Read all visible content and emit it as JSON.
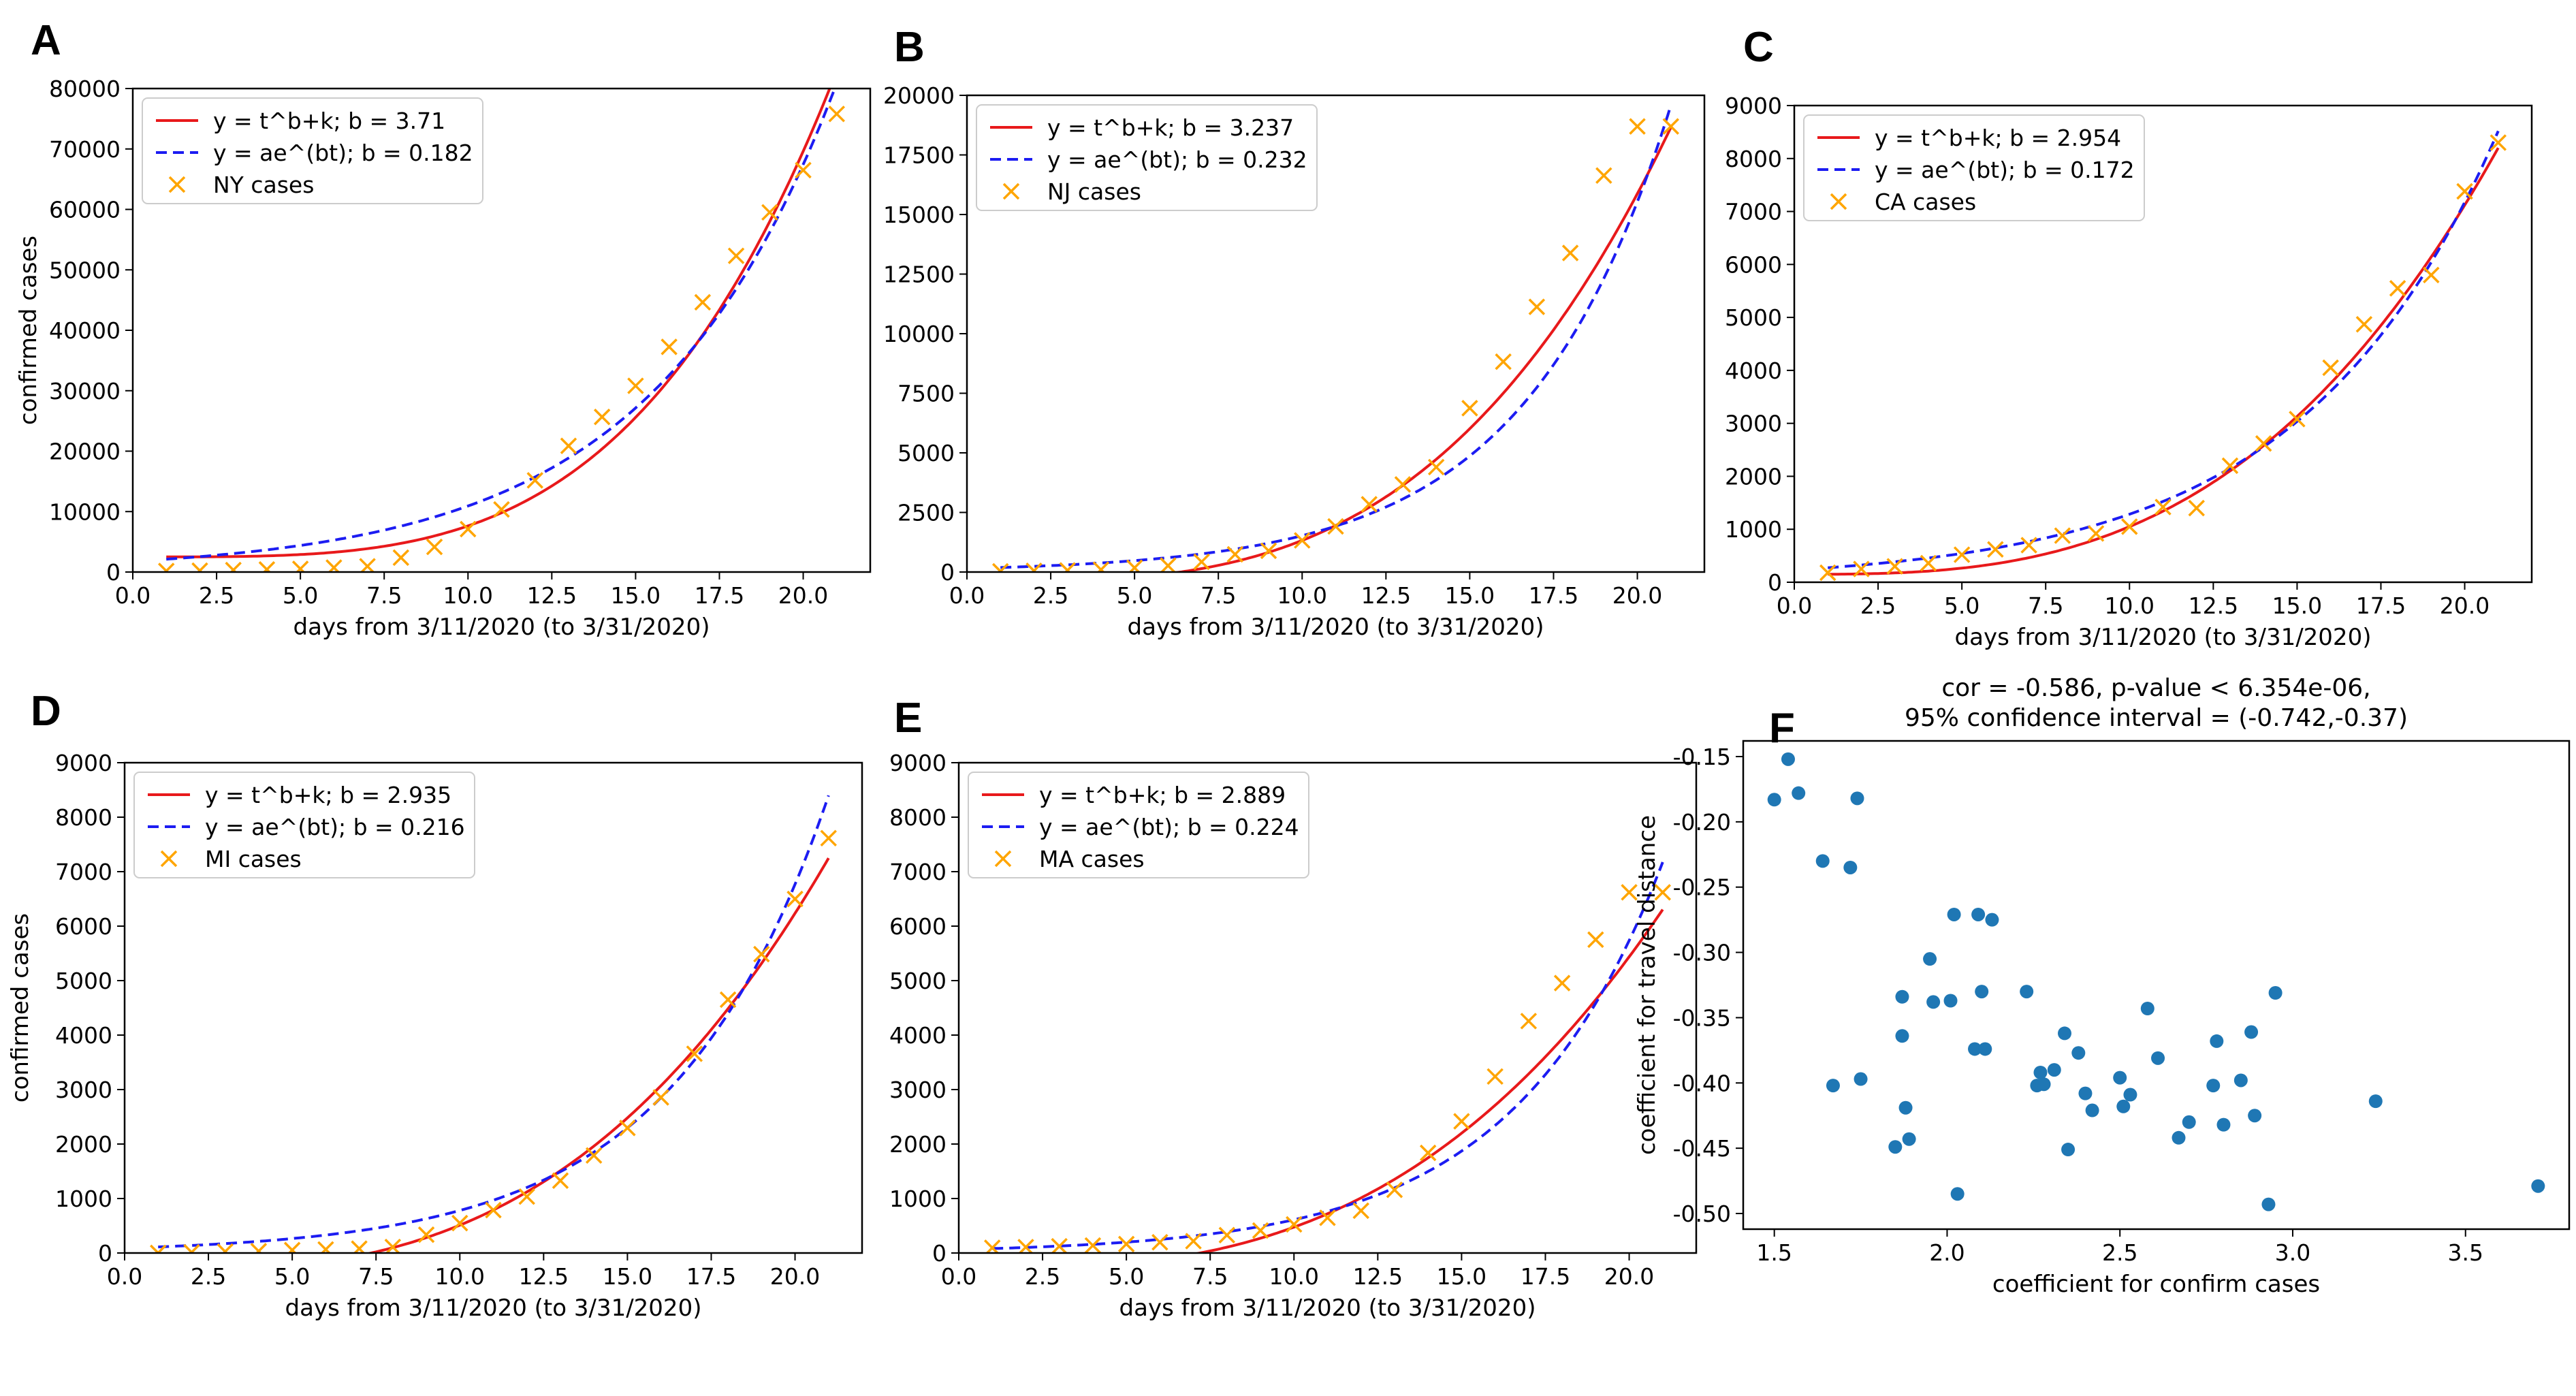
{
  "figure": {
    "xlabel_days": "days from 3/11/2020 (to 3/31/2020)",
    "ylabel_cases": "confirmed cases"
  },
  "colors": {
    "power_fit": "#e8191b",
    "exp_fit": "#1c1cf2",
    "cases": "#ffa500",
    "scatter": "#1f77b4"
  },
  "chart_data": [
    {
      "panel": "A",
      "type": "line",
      "title": "",
      "xlabel": "days from 3/11/2020 (to 3/31/2020)",
      "ylabel": "confirmed cases",
      "xlim": [
        0,
        22.0
      ],
      "ylim": [
        0,
        80000
      ],
      "xticks": [
        0,
        2.5,
        5,
        7.5,
        10,
        12.5,
        15,
        17.5,
        20
      ],
      "xtick_labels": [
        "0.0",
        "2.5",
        "5.0",
        "7.5",
        "10.0",
        "12.5",
        "15.0",
        "17.5",
        "20.0"
      ],
      "yticks": [
        0,
        10000,
        20000,
        30000,
        40000,
        50000,
        60000,
        70000,
        80000
      ],
      "ytick_labels": [
        "0",
        "10000",
        "20000",
        "30000",
        "40000",
        "50000",
        "60000",
        "70000",
        "80000"
      ],
      "legend": [
        "y = t^b+k; b = 3.71",
        "y = ae^(bt); b = 0.182",
        "NY cases"
      ],
      "power_fit": {
        "b": 3.71,
        "k": 2500
      },
      "exp_fit": {
        "a": 1770,
        "b": 0.182
      },
      "x": [
        1,
        2,
        3,
        4,
        5,
        6,
        7,
        8,
        9,
        10,
        11,
        12,
        13,
        14,
        15,
        16,
        17,
        18,
        19,
        20,
        21
      ],
      "cases": [
        173,
        220,
        328,
        421,
        524,
        729,
        950,
        2382,
        4152,
        7102,
        10356,
        15168,
        20875,
        25665,
        30811,
        37258,
        44635,
        52318,
        59513,
        66497,
        75795
      ]
    },
    {
      "panel": "B",
      "type": "line",
      "title": "",
      "xlabel": "days from 3/11/2020 (to 3/31/2020)",
      "ylabel": "",
      "xlim": [
        0,
        22.0
      ],
      "ylim": [
        0,
        20000
      ],
      "xticks": [
        0,
        2.5,
        5,
        7.5,
        10,
        12.5,
        15,
        17.5,
        20
      ],
      "xtick_labels": [
        "0.0",
        "2.5",
        "5.0",
        "7.5",
        "10.0",
        "12.5",
        "15.0",
        "17.5",
        "20.0"
      ],
      "yticks": [
        0,
        2500,
        5000,
        7500,
        10000,
        12500,
        15000,
        17500,
        20000
      ],
      "ytick_labels": [
        "0",
        "2500",
        "5000",
        "7500",
        "10000",
        "12500",
        "15000",
        "17500",
        "20000"
      ],
      "legend": [
        "y = t^b+k; b = 3.237",
        "y = ae^(bt); b = 0.232",
        "NJ cases"
      ],
      "power_fit": {
        "b": 3.237,
        "k": -400
      },
      "exp_fit": {
        "a": 150,
        "b": 0.232
      },
      "x": [
        1,
        2,
        3,
        4,
        5,
        6,
        7,
        8,
        9,
        10,
        11,
        12,
        13,
        14,
        15,
        16,
        17,
        18,
        19,
        20,
        21
      ],
      "cases": [
        29,
        50,
        69,
        98,
        178,
        267,
        427,
        742,
        890,
        1327,
        1914,
        2844,
        3675,
        4402,
        6876,
        8825,
        11124,
        13386,
        16636,
        18696,
        18696
      ]
    },
    {
      "panel": "C",
      "type": "line",
      "title": "",
      "xlabel": "days from 3/11/2020 (to 3/31/2020)",
      "ylabel": "",
      "xlim": [
        0,
        22.0
      ],
      "ylim": [
        0,
        9000
      ],
      "xticks": [
        0,
        2.5,
        5,
        7.5,
        10,
        12.5,
        15,
        17.5,
        20
      ],
      "xtick_labels": [
        "0.0",
        "2.5",
        "5.0",
        "7.5",
        "10.0",
        "12.5",
        "15.0",
        "17.5",
        "20.0"
      ],
      "yticks": [
        0,
        1000,
        2000,
        3000,
        4000,
        5000,
        6000,
        7000,
        8000,
        9000
      ],
      "ytick_labels": [
        "0",
        "1000",
        "2000",
        "3000",
        "4000",
        "5000",
        "6000",
        "7000",
        "8000",
        "9000"
      ],
      "legend": [
        "y = t^b+k; b = 2.954",
        "y = ae^(bt); b = 0.172",
        "CA cases"
      ],
      "power_fit": {
        "b": 2.954,
        "k": 150
      },
      "exp_fit": {
        "a": 230,
        "b": 0.172
      },
      "x": [
        1,
        2,
        3,
        4,
        5,
        6,
        7,
        8,
        9,
        10,
        11,
        12,
        13,
        14,
        15,
        16,
        17,
        18,
        19,
        20,
        21
      ],
      "cases": [
        180,
        250,
        300,
        360,
        520,
        620,
        700,
        880,
        920,
        1050,
        1420,
        1400,
        2200,
        2620,
        3080,
        4050,
        4870,
        5550,
        5800,
        7380,
        8300
      ]
    },
    {
      "panel": "D",
      "type": "line",
      "title": "",
      "xlabel": "days from 3/11/2020 (to 3/31/2020)",
      "ylabel": "confirmed cases",
      "xlim": [
        0,
        22.0
      ],
      "ylim": [
        0,
        9000
      ],
      "xticks": [
        0,
        2.5,
        5,
        7.5,
        10,
        12.5,
        15,
        17.5,
        20
      ],
      "xtick_labels": [
        "0.0",
        "2.5",
        "5.0",
        "7.5",
        "10.0",
        "12.5",
        "15.0",
        "17.5",
        "20.0"
      ],
      "yticks": [
        0,
        1000,
        2000,
        3000,
        4000,
        5000,
        6000,
        7000,
        8000,
        9000
      ],
      "ytick_labels": [
        "0",
        "1000",
        "2000",
        "3000",
        "4000",
        "5000",
        "6000",
        "7000",
        "8000",
        "9000"
      ],
      "legend": [
        "y = t^b+k; b = 2.935",
        "y = ae^(bt); b = 0.216",
        "MI cases"
      ],
      "power_fit": {
        "b": 2.935,
        "k": -350
      },
      "exp_fit": {
        "a": 90,
        "b": 0.216
      },
      "x": [
        1,
        2,
        3,
        4,
        5,
        6,
        7,
        8,
        9,
        10,
        11,
        12,
        13,
        14,
        15,
        16,
        17,
        18,
        19,
        20,
        21
      ],
      "cases": [
        2,
        12,
        25,
        33,
        53,
        65,
        80,
        110,
        336,
        549,
        787,
        1035,
        1328,
        1791,
        2295,
        2856,
        3657,
        4650,
        5486,
        6498,
        7615
      ]
    },
    {
      "panel": "E",
      "type": "line",
      "title": "",
      "xlabel": "days from 3/11/2020 (to 3/31/2020)",
      "ylabel": "",
      "xlim": [
        0,
        22.0
      ],
      "ylim": [
        0,
        9000
      ],
      "xticks": [
        0,
        2.5,
        5,
        7.5,
        10,
        12.5,
        15,
        17.5,
        20
      ],
      "xtick_labels": [
        "0.0",
        "2.5",
        "5.0",
        "7.5",
        "10.0",
        "12.5",
        "15.0",
        "17.5",
        "20.0"
      ],
      "yticks": [
        0,
        1000,
        2000,
        3000,
        4000,
        5000,
        6000,
        7000,
        8000,
        9000
      ],
      "ytick_labels": [
        "0",
        "1000",
        "2000",
        "3000",
        "4000",
        "5000",
        "6000",
        "7000",
        "8000",
        "9000"
      ],
      "legend": [
        "y = t^b+k; b = 2.889",
        "y = ae^(bt); b = 0.224",
        "MA cases"
      ],
      "power_fit": {
        "b": 2.889,
        "k": -300
      },
      "exp_fit": {
        "a": 65,
        "b": 0.224
      },
      "x": [
        1,
        2,
        3,
        4,
        5,
        6,
        7,
        8,
        9,
        10,
        11,
        12,
        13,
        14,
        15,
        16,
        17,
        18,
        19,
        20,
        21
      ],
      "cases": [
        95,
        108,
        123,
        138,
        164,
        197,
        218,
        328,
        413,
        525,
        646,
        777,
        1159,
        1838,
        2417,
        3240,
        4257,
        4955,
        5752,
        6620,
        6620
      ]
    },
    {
      "panel": "F",
      "type": "scatter",
      "title": "cor = -0.586, p-value < 6.354e-06,",
      "subtitle": "95% confidence interval = (-0.742,-0.37)",
      "xlabel": "coefficient for confirm cases",
      "ylabel": "coefficient for travel distance",
      "xlim": [
        1.41,
        3.8
      ],
      "ylim": [
        -0.512,
        -0.138
      ],
      "xticks": [
        1.5,
        2.0,
        2.5,
        3.0,
        3.5
      ],
      "xtick_labels": [
        "1.5",
        "2.0",
        "2.5",
        "3.0",
        "3.5"
      ],
      "yticks": [
        -0.15,
        -0.2,
        -0.25,
        -0.3,
        -0.35,
        -0.4,
        -0.45,
        -0.5
      ],
      "ytick_labels": [
        "-0.15",
        "-0.20",
        "-0.25",
        "-0.30",
        "-0.35",
        "-0.40",
        "-0.45",
        "-0.50"
      ],
      "points": [
        [
          1.5,
          -0.183
        ],
        [
          1.54,
          -0.152
        ],
        [
          1.57,
          -0.178
        ],
        [
          1.64,
          -0.23
        ],
        [
          1.72,
          -0.235
        ],
        [
          1.74,
          -0.182
        ],
        [
          1.67,
          -0.402
        ],
        [
          1.75,
          -0.397
        ],
        [
          1.85,
          -0.449
        ],
        [
          1.87,
          -0.334
        ],
        [
          1.87,
          -0.364
        ],
        [
          1.88,
          -0.419
        ],
        [
          1.89,
          -0.443
        ],
        [
          1.95,
          -0.305
        ],
        [
          1.96,
          -0.338
        ],
        [
          2.01,
          -0.337
        ],
        [
          2.02,
          -0.271
        ],
        [
          2.03,
          -0.485
        ],
        [
          2.08,
          -0.374
        ],
        [
          2.09,
          -0.271
        ],
        [
          2.1,
          -0.33
        ],
        [
          2.11,
          -0.374
        ],
        [
          2.13,
          -0.275
        ],
        [
          2.23,
          -0.33
        ],
        [
          2.26,
          -0.402
        ],
        [
          2.27,
          -0.392
        ],
        [
          2.28,
          -0.401
        ],
        [
          2.31,
          -0.39
        ],
        [
          2.34,
          -0.362
        ],
        [
          2.35,
          -0.451
        ],
        [
          2.38,
          -0.377
        ],
        [
          2.4,
          -0.408
        ],
        [
          2.42,
          -0.421
        ],
        [
          2.5,
          -0.396
        ],
        [
          2.51,
          -0.418
        ],
        [
          2.53,
          -0.409
        ],
        [
          2.58,
          -0.343
        ],
        [
          2.61,
          -0.381
        ],
        [
          2.67,
          -0.442
        ],
        [
          2.7,
          -0.43
        ],
        [
          2.77,
          -0.402
        ],
        [
          2.78,
          -0.368
        ],
        [
          2.8,
          -0.432
        ],
        [
          2.85,
          -0.398
        ],
        [
          2.88,
          -0.361
        ],
        [
          2.89,
          -0.425
        ],
        [
          2.93,
          -0.493
        ],
        [
          2.95,
          -0.331
        ],
        [
          3.24,
          -0.414
        ],
        [
          3.71,
          -0.479
        ]
      ]
    }
  ]
}
